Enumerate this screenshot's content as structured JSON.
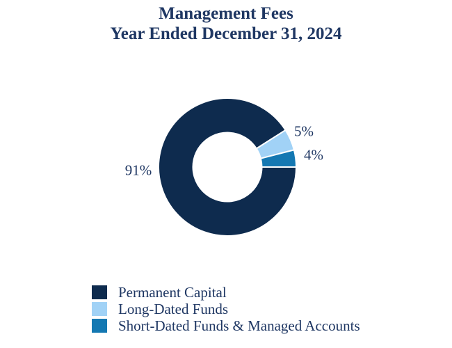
{
  "title": {
    "line1": "Management Fees",
    "line2": "Year Ended December 31, 2024"
  },
  "chart_data": {
    "type": "pie",
    "subtype": "donut",
    "title": "Management Fees",
    "subtitle": "Year Ended December 31, 2024",
    "categories": [
      "Permanent Capital",
      "Long-Dated Funds",
      "Short-Dated Funds & Managed Accounts"
    ],
    "values": [
      91,
      5,
      4
    ],
    "unit": "%",
    "slice_labels": [
      "91%",
      "5%",
      "4%"
    ],
    "colors": [
      "#0e2b4e",
      "#a1d2f6",
      "#1478b2"
    ],
    "start_angle_deg": 0,
    "direction": "clockwise",
    "inner_radius_ratio": 0.5,
    "slice_border_color": "#ffffff",
    "legend_position": "bottom-left",
    "background": "#ffffff",
    "text_color": "#1f3763"
  }
}
